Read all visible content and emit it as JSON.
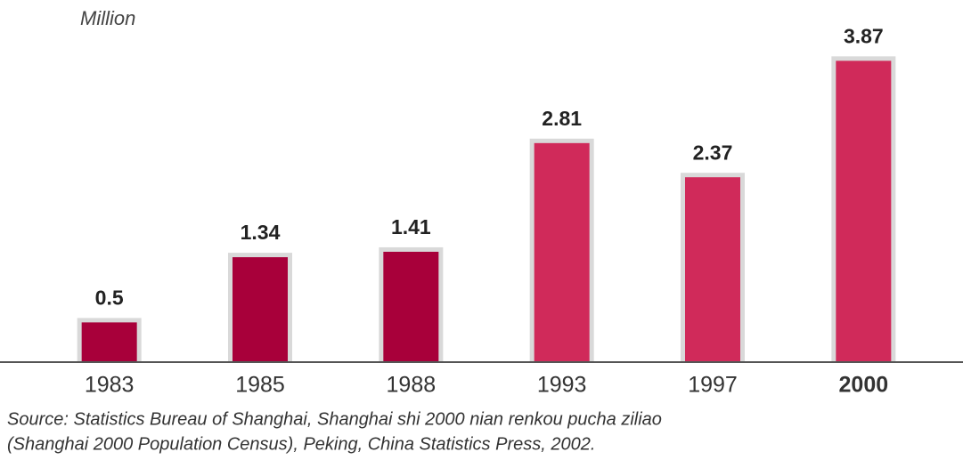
{
  "chart_data": {
    "type": "bar",
    "unit_label": "Million",
    "categories": [
      "1983",
      "1985",
      "1988",
      "1993",
      "1997",
      "2000"
    ],
    "values": [
      0.5,
      1.34,
      1.41,
      2.81,
      2.37,
      3.87
    ],
    "colors": [
      "#a8003a",
      "#a8003a",
      "#a8003a",
      "#d02a5a",
      "#d02a5a",
      "#d02a5a"
    ],
    "ylim": [
      0,
      4
    ],
    "source": [
      "Source: Statistics Bureau of Shanghai, Shanghai shi 2000 nian renkou pucha ziliao",
      "(Shanghai 2000 Population Census), Peking, China Statistics Press, 2002."
    ]
  }
}
